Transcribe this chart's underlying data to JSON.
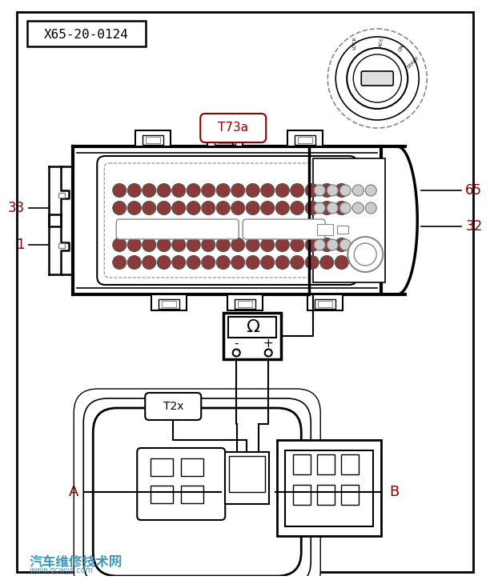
{
  "bg_color": "#ffffff",
  "line_color": "#000000",
  "title_label": "X65-20-0124",
  "connector_label": "T73a",
  "connector2_label": "T2x",
  "label_33": "33",
  "label_1": "1",
  "label_65": "65",
  "label_32": "32",
  "label_A": "A",
  "label_B": "B",
  "watermark": "汽车维修技术网",
  "watermark2": "www.qcwjjs.com",
  "pin_color_dark": "#8B3A3A",
  "pin_color_light": "#cccccc",
  "gray_color": "#888888",
  "accent_color": "#8B0000",
  "label_color": "#8B0000"
}
